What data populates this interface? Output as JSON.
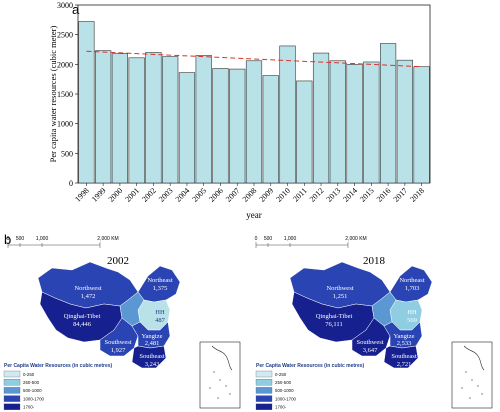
{
  "panel_a": {
    "label": "a"
  },
  "panel_b": {
    "label": "b"
  },
  "chart_data": {
    "type": "bar",
    "title": "",
    "xlabel": "year",
    "ylabel": "Per capita water resources (cubic meter)",
    "ylim": [
      0,
      3000
    ],
    "yticks": [
      "0",
      "500",
      "1000",
      "1500",
      "2000",
      "2500",
      "3000"
    ],
    "categories": [
      "1998",
      "1999",
      "2000",
      "2001",
      "2002",
      "2003",
      "2004",
      "2005",
      "2006",
      "2007",
      "2008",
      "2009",
      "2010",
      "2011",
      "2012",
      "2013",
      "2014",
      "2015",
      "2016",
      "2017",
      "2018"
    ],
    "values": [
      2720,
      2230,
      2180,
      2110,
      2200,
      2130,
      1860,
      2150,
      1930,
      1920,
      2060,
      1810,
      2310,
      1720,
      2190,
      2060,
      2000,
      2040,
      2350,
      2070,
      1960
    ],
    "trend_line": {
      "start": 2220,
      "end": 1960,
      "style": "dashed",
      "color": "#d9342b"
    },
    "bar_color": "#b9e1e8",
    "grid": false,
    "legend": "none"
  },
  "maps": [
    {
      "title": "2002",
      "scale": [
        "0",
        "500",
        "1,000",
        "2,000 KM"
      ],
      "regions": [
        {
          "name": "Northeast",
          "value": "1,375"
        },
        {
          "name": "Northwest",
          "value": "1,472"
        },
        {
          "name": "HH",
          "value": "487"
        },
        {
          "name": "Qinghai-Tibet",
          "value": "84,446"
        },
        {
          "name": "Yangtze",
          "value": "2,481"
        },
        {
          "name": "Southwest",
          "value": "1,927"
        },
        {
          "name": "Southeast",
          "value": "3,243"
        }
      ]
    },
    {
      "title": "2018",
      "scale": [
        "0",
        "500",
        "1,000",
        "2,000 KM"
      ],
      "regions": [
        {
          "name": "Northeast",
          "value": "1,703"
        },
        {
          "name": "Northwest",
          "value": "1,251"
        },
        {
          "name": "HH",
          "value": "569"
        },
        {
          "name": "Qinghai-Tibet",
          "value": "76,111"
        },
        {
          "name": "Yangtze",
          "value": "2,533"
        },
        {
          "name": "Southwest",
          "value": "3,647"
        },
        {
          "name": "Southeast",
          "value": "2,721"
        }
      ]
    }
  ],
  "legend": {
    "title": "Per Capita Water Resources (in cubic metres)",
    "items": [
      {
        "label": "0-250",
        "color": "#cfeaf2"
      },
      {
        "label": "250-500",
        "color": "#8fcde3"
      },
      {
        "label": "500-1000",
        "color": "#5b98d3"
      },
      {
        "label": "1000-1700",
        "color": "#2a45b3"
      },
      {
        "label": "1700-",
        "color": "#17208f"
      }
    ]
  }
}
